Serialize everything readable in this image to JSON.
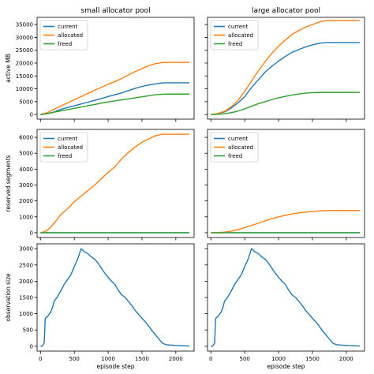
{
  "chart_data": [
    {
      "type": "line",
      "title": "small allocator pool",
      "ylabel": "active MB",
      "xlabel": "",
      "xlim": [
        -50,
        2270
      ],
      "ylim": [
        -1800,
        37800
      ],
      "yticks": [
        0,
        5000,
        10000,
        15000,
        20000,
        25000,
        30000,
        35000
      ],
      "xticks": [
        0,
        500,
        1000,
        1500,
        2000
      ],
      "show_xtick_labels": false,
      "legend": "top-left",
      "series": [
        {
          "name": "current",
          "color": "#1f77b4",
          "x": [
            0,
            100,
            200,
            300,
            400,
            500,
            600,
            700,
            800,
            900,
            1000,
            1100,
            1200,
            1300,
            1400,
            1500,
            1600,
            1700,
            1800,
            1900,
            2000,
            2100,
            2200
          ],
          "y": [
            0,
            300,
            1000,
            2000,
            2700,
            3400,
            4100,
            4800,
            5500,
            6200,
            7000,
            7700,
            8400,
            9300,
            10200,
            10900,
            11500,
            11900,
            12300,
            12350,
            12350,
            12350,
            12350
          ]
        },
        {
          "name": "allocated",
          "color": "#ff7f0e",
          "x": [
            0,
            100,
            200,
            300,
            400,
            500,
            600,
            700,
            800,
            900,
            1000,
            1100,
            1200,
            1300,
            1400,
            1500,
            1600,
            1700,
            1800,
            1900,
            2000,
            2100,
            2200
          ],
          "y": [
            0,
            700,
            2000,
            3300,
            4500,
            5800,
            7000,
            8200,
            9400,
            10600,
            11800,
            12800,
            14000,
            15400,
            16700,
            17900,
            19000,
            19800,
            20200,
            20300,
            20300,
            20300,
            20300
          ]
        },
        {
          "name": "freed",
          "color": "#2ca02c",
          "x": [
            0,
            100,
            200,
            300,
            400,
            500,
            600,
            700,
            800,
            900,
            1000,
            1100,
            1200,
            1300,
            1400,
            1500,
            1600,
            1700,
            1800,
            1900,
            2000,
            2100,
            2200
          ],
          "y": [
            0,
            300,
            900,
            1400,
            1900,
            2400,
            2900,
            3400,
            3900,
            4400,
            4900,
            5300,
            5700,
            6100,
            6500,
            6900,
            7300,
            7700,
            7900,
            7950,
            7950,
            7950,
            7950
          ]
        }
      ]
    },
    {
      "type": "line",
      "title": "large allocator pool",
      "ylabel": "",
      "xlabel": "",
      "xlim": [
        -50,
        2270
      ],
      "ylim": [
        -1800,
        37800
      ],
      "yticks": [
        0,
        5000,
        10000,
        15000,
        20000,
        25000,
        30000,
        35000
      ],
      "xticks": [
        0,
        500,
        1000,
        1500,
        2000
      ],
      "show_ytick_labels": false,
      "show_xtick_labels": false,
      "legend": "top-left",
      "series": [
        {
          "name": "current",
          "color": "#1f77b4",
          "x": [
            0,
            100,
            200,
            300,
            400,
            500,
            600,
            700,
            800,
            900,
            1000,
            1100,
            1200,
            1300,
            1400,
            1500,
            1600,
            1700,
            1800,
            1900,
            2000,
            2100,
            2200
          ],
          "y": [
            0,
            300,
            1000,
            2500,
            4500,
            7000,
            10500,
            13500,
            16500,
            18800,
            20800,
            22600,
            24200,
            25300,
            26300,
            27100,
            27700,
            28000,
            28000,
            28000,
            28000,
            28000,
            28000
          ]
        },
        {
          "name": "allocated",
          "color": "#ff7f0e",
          "x": [
            0,
            100,
            200,
            300,
            400,
            500,
            600,
            700,
            800,
            900,
            1000,
            1100,
            1200,
            1300,
            1400,
            1500,
            1600,
            1700,
            1800,
            1900,
            2000,
            2100,
            2200
          ],
          "y": [
            0,
            400,
            1200,
            3000,
            5500,
            9000,
            13000,
            17000,
            20500,
            23800,
            26600,
            29000,
            31200,
            32700,
            34000,
            35000,
            36000,
            36500,
            36600,
            36600,
            36600,
            36600,
            36600
          ]
        },
        {
          "name": "freed",
          "color": "#2ca02c",
          "x": [
            0,
            100,
            200,
            300,
            400,
            500,
            600,
            700,
            800,
            900,
            1000,
            1100,
            1200,
            1300,
            1400,
            1500,
            1600,
            1700,
            1800,
            1900,
            2000,
            2100,
            2200
          ],
          "y": [
            0,
            100,
            300,
            700,
            1300,
            2200,
            3200,
            4200,
            5000,
            5800,
            6500,
            7100,
            7600,
            8000,
            8300,
            8500,
            8600,
            8600,
            8600,
            8600,
            8600,
            8600,
            8600
          ]
        }
      ]
    },
    {
      "type": "line",
      "title": "",
      "ylabel": "reserved segments",
      "xlabel": "",
      "xlim": [
        -50,
        2270
      ],
      "ylim": [
        -300,
        6500
      ],
      "yticks": [
        0,
        1000,
        2000,
        3000,
        4000,
        5000,
        6000
      ],
      "xticks": [
        0,
        500,
        1000,
        1500,
        2000
      ],
      "show_xtick_labels": false,
      "legend": "top-left",
      "series": [
        {
          "name": "current",
          "color": "#1f77b4",
          "x": [
            0,
            2200
          ],
          "y": [
            0,
            0
          ]
        },
        {
          "name": "allocated",
          "color": "#ff7f0e",
          "x": [
            0,
            50,
            100,
            150,
            200,
            250,
            300,
            400,
            500,
            600,
            700,
            800,
            900,
            1000,
            1100,
            1200,
            1300,
            1400,
            1500,
            1600,
            1700,
            1800,
            1900,
            2000,
            2100,
            2200
          ],
          "y": [
            0,
            50,
            150,
            350,
            600,
            850,
            1150,
            1500,
            1950,
            2300,
            2650,
            3000,
            3400,
            3800,
            4150,
            4650,
            5050,
            5400,
            5700,
            5900,
            6100,
            6200,
            6200,
            6200,
            6200,
            6200
          ]
        },
        {
          "name": "freed",
          "color": "#2ca02c",
          "x": [
            0,
            2200
          ],
          "y": [
            0,
            0
          ]
        }
      ]
    },
    {
      "type": "line",
      "title": "",
      "ylabel": "",
      "xlabel": "",
      "xlim": [
        -50,
        2270
      ],
      "ylim": [
        -300,
        6500
      ],
      "yticks": [
        0,
        1000,
        2000,
        3000,
        4000,
        5000,
        6000
      ],
      "xticks": [
        0,
        500,
        1000,
        1500,
        2000
      ],
      "show_ytick_labels": false,
      "show_xtick_labels": false,
      "legend": "top-left",
      "series": [
        {
          "name": "current",
          "color": "#1f77b4",
          "x": [
            0,
            2200
          ],
          "y": [
            0,
            0
          ]
        },
        {
          "name": "allocated",
          "color": "#ff7f0e",
          "x": [
            0,
            100,
            200,
            300,
            400,
            500,
            600,
            700,
            800,
            900,
            1000,
            1100,
            1200,
            1300,
            1400,
            1500,
            1600,
            1700,
            1800,
            1900,
            2000,
            2100,
            2200
          ],
          "y": [
            0,
            10,
            40,
            100,
            200,
            320,
            460,
            600,
            750,
            880,
            1000,
            1100,
            1180,
            1250,
            1300,
            1340,
            1370,
            1390,
            1400,
            1400,
            1400,
            1400,
            1400
          ]
        },
        {
          "name": "freed",
          "color": "#2ca02c",
          "x": [
            0,
            2200
          ],
          "y": [
            0,
            0
          ]
        }
      ]
    },
    {
      "type": "line",
      "title": "",
      "ylabel": "observation size",
      "xlabel": "episode step",
      "xlim": [
        -50,
        2270
      ],
      "ylim": [
        -150,
        3150
      ],
      "yticks": [
        0,
        500,
        1000,
        1500,
        2000,
        2500,
        3000
      ],
      "xticks": [
        0,
        500,
        1000,
        1500,
        2000
      ],
      "legend": "none",
      "series": [
        {
          "name": "",
          "color": "#1f77b4",
          "x": [
            0,
            20,
            40,
            55,
            70,
            90,
            100,
            120,
            150,
            180,
            200,
            250,
            300,
            350,
            400,
            450,
            500,
            550,
            600,
            650,
            700,
            750,
            800,
            850,
            900,
            950,
            1000,
            1050,
            1100,
            1150,
            1200,
            1250,
            1300,
            1350,
            1400,
            1450,
            1500,
            1550,
            1600,
            1650,
            1700,
            1750,
            1800,
            1850,
            1900,
            2000,
            2100,
            2200
          ],
          "y": [
            0,
            0,
            50,
            100,
            850,
            900,
            900,
            960,
            1050,
            1200,
            1380,
            1520,
            1700,
            1900,
            2050,
            2200,
            2450,
            2680,
            3000,
            2900,
            2850,
            2750,
            2680,
            2560,
            2400,
            2250,
            2120,
            2000,
            1900,
            1720,
            1580,
            1500,
            1380,
            1250,
            1100,
            980,
            860,
            750,
            620,
            470,
            350,
            220,
            100,
            50,
            40,
            25,
            15,
            5
          ]
        }
      ]
    },
    {
      "type": "line",
      "title": "",
      "ylabel": "",
      "xlabel": "episode step",
      "xlim": [
        -50,
        2270
      ],
      "ylim": [
        -150,
        3150
      ],
      "yticks": [
        0,
        500,
        1000,
        1500,
        2000,
        2500,
        3000
      ],
      "xticks": [
        0,
        500,
        1000,
        1500,
        2000
      ],
      "show_ytick_labels": false,
      "legend": "none",
      "series": [
        {
          "name": "",
          "color": "#1f77b4",
          "x": [
            0,
            20,
            40,
            55,
            70,
            90,
            100,
            120,
            150,
            180,
            200,
            250,
            300,
            350,
            400,
            450,
            500,
            550,
            600,
            650,
            700,
            750,
            800,
            850,
            900,
            950,
            1000,
            1050,
            1100,
            1150,
            1200,
            1250,
            1300,
            1350,
            1400,
            1450,
            1500,
            1550,
            1600,
            1650,
            1700,
            1750,
            1800,
            1850,
            1900,
            2000,
            2100,
            2200
          ],
          "y": [
            0,
            0,
            50,
            100,
            850,
            900,
            900,
            960,
            1050,
            1200,
            1380,
            1520,
            1700,
            1900,
            2050,
            2200,
            2450,
            2680,
            3000,
            2900,
            2850,
            2750,
            2680,
            2560,
            2400,
            2250,
            2120,
            2000,
            1900,
            1720,
            1580,
            1500,
            1380,
            1250,
            1100,
            980,
            860,
            750,
            620,
            470,
            350,
            220,
            100,
            50,
            40,
            25,
            15,
            5
          ]
        }
      ]
    }
  ]
}
